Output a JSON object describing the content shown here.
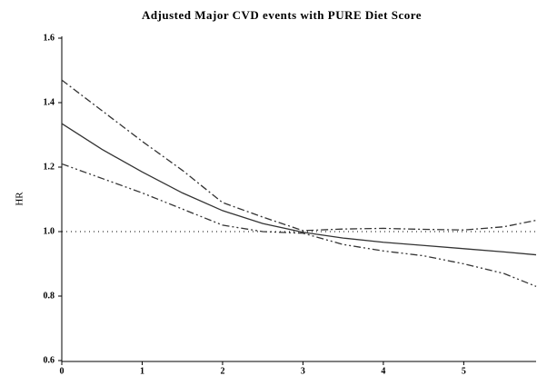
{
  "chart_data": {
    "type": "line",
    "title": "Adjusted Major CVD events with PURE Diet Score",
    "ylabel": "HR",
    "x": [
      0,
      0.5,
      1,
      1.5,
      2,
      2.5,
      3,
      3.5,
      4,
      4.5,
      5,
      5.5,
      5.9
    ],
    "series": [
      {
        "color": "#333333",
        "dash": "none",
        "values": [
          1.335,
          1.255,
          1.185,
          1.12,
          1.065,
          1.025,
          0.998,
          0.98,
          0.967,
          0.957,
          0.947,
          0.937,
          0.928
        ]
      },
      {
        "color": "#333333",
        "dash": "8 3 2 3",
        "values": [
          1.47,
          1.375,
          1.28,
          1.19,
          1.09,
          1.045,
          1.003,
          1.008,
          1.01,
          1.007,
          1.005,
          1.015,
          1.035
        ]
      },
      {
        "color": "#333333",
        "dash": "8 3 2 3 2 3",
        "values": [
          1.21,
          1.165,
          1.12,
          1.07,
          1.02,
          1.0,
          0.995,
          0.96,
          0.94,
          0.925,
          0.9,
          0.87,
          0.83
        ]
      }
    ],
    "hline": 1,
    "xlim": [
      0,
      5.9
    ],
    "ylim": [
      0.6,
      1.6
    ],
    "xticks": [
      0,
      1,
      2,
      3,
      4,
      5
    ],
    "yticks": [
      0.6,
      0.8,
      {
        "value": 1,
        "label": "1.0"
      },
      1.2,
      1.4,
      1.6
    ]
  }
}
